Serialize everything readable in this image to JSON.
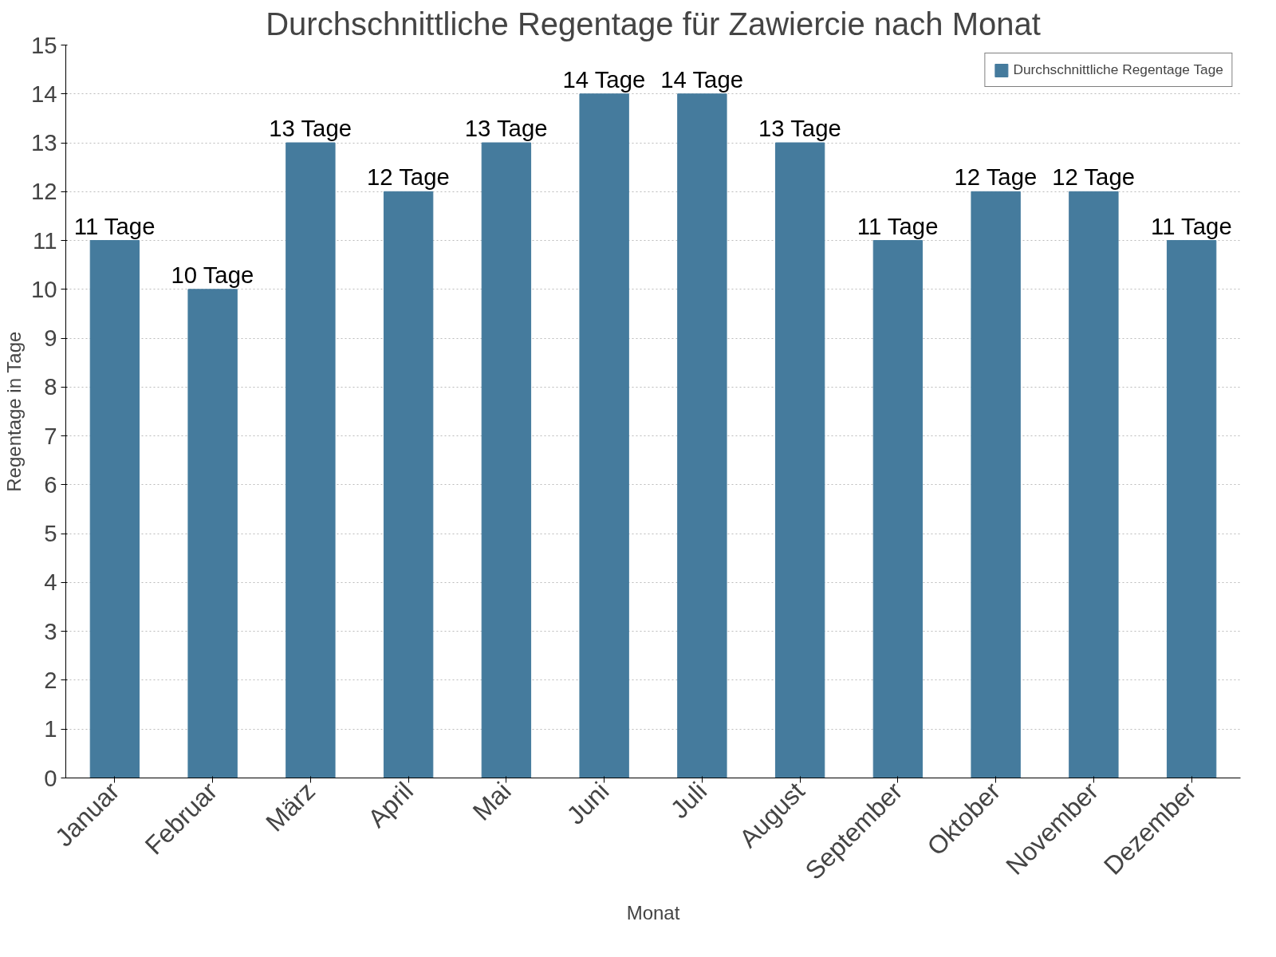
{
  "chart_data": {
    "type": "bar",
    "title": "Durchschnittliche Regentage für Zawiercie nach Monat",
    "xlabel": "Monat",
    "ylabel": "Regentage in Tage",
    "categories": [
      "Januar",
      "Februar",
      "März",
      "April",
      "Mai",
      "Juni",
      "Juli",
      "August",
      "September",
      "Oktober",
      "November",
      "Dezember"
    ],
    "series": [
      {
        "name": "Durchschnittliche Regentage Tage",
        "color": "#457b9d",
        "values": [
          11,
          10,
          13,
          12,
          13,
          14,
          14,
          13,
          11,
          12,
          12,
          11
        ],
        "value_labels": [
          "11 Tage",
          "10 Tage",
          "13 Tage",
          "12 Tage",
          "13 Tage",
          "14 Tage",
          "14 Tage",
          "13 Tage",
          "11 Tage",
          "12 Tage",
          "12 Tage",
          "11 Tage"
        ]
      }
    ],
    "ylim": [
      0,
      15
    ],
    "yticks": [
      0,
      1,
      2,
      3,
      4,
      5,
      6,
      7,
      8,
      9,
      10,
      11,
      12,
      13,
      14,
      15
    ],
    "grid": "y",
    "legend": "top right"
  }
}
